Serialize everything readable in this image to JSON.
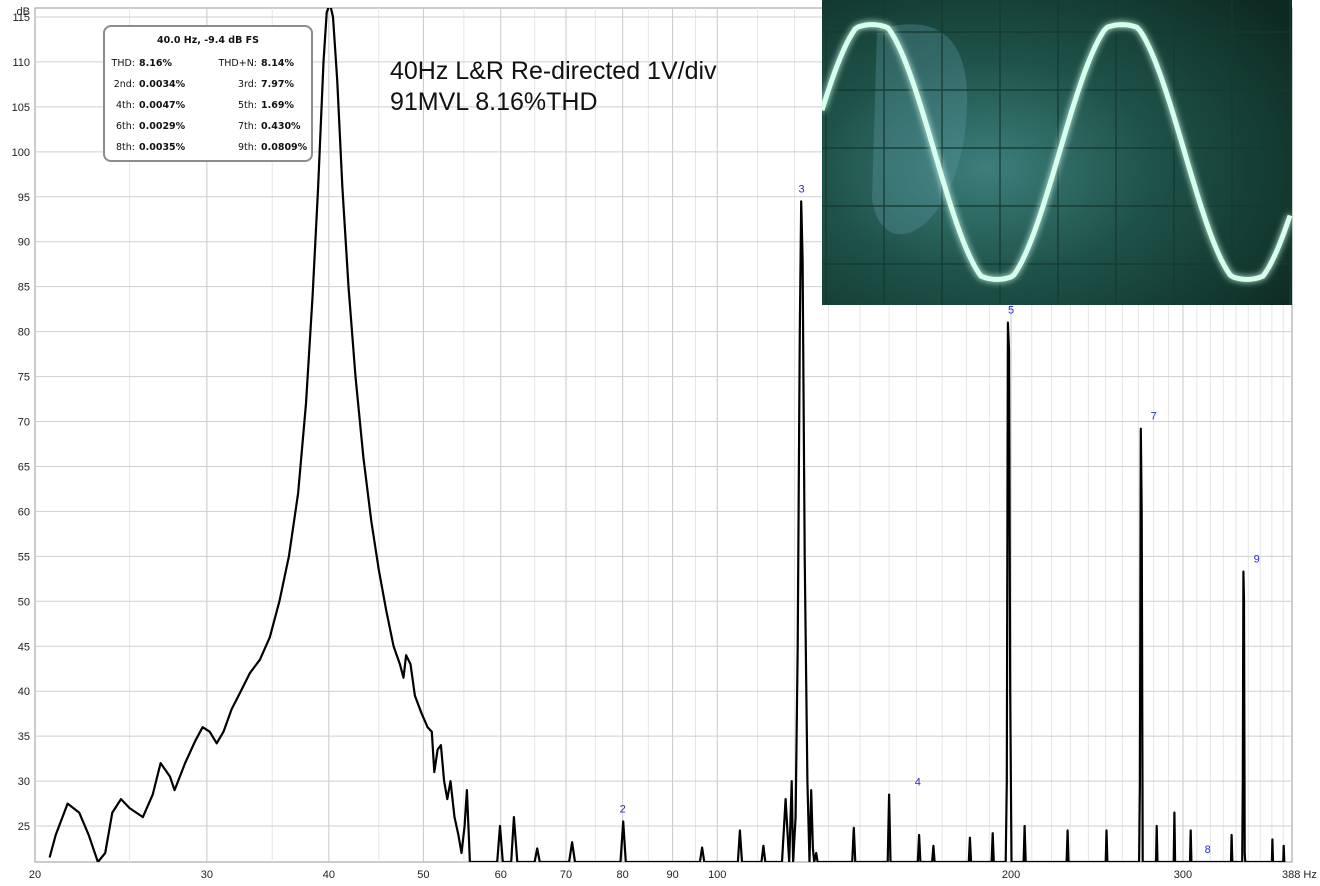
{
  "chart_data": {
    "type": "line",
    "xlabel": "Hz",
    "ylabel": "dB",
    "xscale": "log",
    "xlim": [
      20,
      388
    ],
    "ylim": [
      21,
      116
    ],
    "grid": true,
    "x_ticks": [
      20,
      30,
      40,
      50,
      60,
      70,
      80,
      90,
      100,
      200,
      300,
      388
    ],
    "x_tick_labels": [
      "20",
      "30",
      "40",
      "50",
      "60",
      "70",
      "80",
      "90",
      "100",
      "200",
      "300",
      "388 Hz"
    ],
    "y_ticks": [
      25,
      30,
      35,
      40,
      45,
      50,
      55,
      60,
      65,
      70,
      75,
      80,
      85,
      90,
      95,
      100,
      105,
      110,
      115
    ],
    "series": [
      {
        "values": [
          [
            20.7,
            21.5
          ],
          [
            21.0,
            24
          ],
          [
            21.6,
            27.5
          ],
          [
            22.2,
            26.5
          ],
          [
            22.7,
            24
          ],
          [
            23.2,
            21
          ],
          [
            23.6,
            22
          ],
          [
            24.0,
            26.5
          ],
          [
            24.5,
            28
          ],
          [
            25.0,
            27
          ],
          [
            25.8,
            26
          ],
          [
            26.4,
            28.5
          ],
          [
            26.9,
            32
          ],
          [
            27.5,
            30.5
          ],
          [
            27.8,
            29
          ],
          [
            28.5,
            32
          ],
          [
            29.2,
            34.5
          ],
          [
            29.7,
            36
          ],
          [
            30.2,
            35.5
          ],
          [
            30.7,
            34.2
          ],
          [
            31.2,
            35.5
          ],
          [
            31.8,
            38
          ],
          [
            32.5,
            40
          ],
          [
            33.2,
            42
          ],
          [
            34.0,
            43.5
          ],
          [
            34.8,
            46
          ],
          [
            35.6,
            50
          ],
          [
            36.4,
            55
          ],
          [
            37.2,
            62
          ],
          [
            37.9,
            72
          ],
          [
            38.5,
            84
          ],
          [
            39.0,
            96
          ],
          [
            39.5,
            110
          ],
          [
            39.8,
            115.5
          ],
          [
            40.1,
            116.5
          ],
          [
            40.4,
            115
          ],
          [
            40.8,
            108
          ],
          [
            41.3,
            96
          ],
          [
            41.9,
            85
          ],
          [
            42.6,
            75
          ],
          [
            43.4,
            66
          ],
          [
            44.2,
            59
          ],
          [
            45.0,
            53.5
          ],
          [
            45.8,
            49
          ],
          [
            46.6,
            45
          ],
          [
            47.3,
            43
          ],
          [
            47.7,
            41.5
          ],
          [
            48.0,
            44
          ],
          [
            48.5,
            43
          ],
          [
            49.0,
            39.5
          ],
          [
            49.8,
            37.5
          ],
          [
            50.5,
            36
          ],
          [
            51.0,
            35.5
          ],
          [
            51.3,
            31
          ],
          [
            51.7,
            33.5
          ],
          [
            52.1,
            34
          ],
          [
            52.5,
            30
          ],
          [
            52.9,
            28
          ],
          [
            53.3,
            30
          ],
          [
            53.8,
            26
          ],
          [
            54.3,
            24
          ],
          [
            54.7,
            22
          ],
          [
            55.1,
            25
          ],
          [
            55.4,
            29
          ],
          [
            55.8,
            21
          ],
          [
            59.5,
            21
          ],
          [
            59.9,
            25
          ],
          [
            60.3,
            21
          ],
          [
            61.5,
            21
          ],
          [
            61.9,
            26
          ],
          [
            62.4,
            21
          ],
          [
            65.0,
            21
          ],
          [
            65.4,
            22.5
          ],
          [
            65.8,
            21
          ],
          [
            70.5,
            21
          ],
          [
            71.0,
            23.2
          ],
          [
            71.5,
            21
          ],
          [
            79.6,
            21
          ],
          [
            80.1,
            25.5
          ],
          [
            80.6,
            21
          ],
          [
            96.0,
            21
          ],
          [
            96.5,
            22.6
          ],
          [
            97.0,
            21
          ],
          [
            105.0,
            21
          ],
          [
            105.5,
            24.5
          ],
          [
            106.0,
            21
          ],
          [
            111.0,
            21
          ],
          [
            111.5,
            22.8
          ],
          [
            112.0,
            21
          ],
          [
            116.5,
            21
          ],
          [
            117.5,
            28
          ],
          [
            118.5,
            21
          ],
          [
            118.8,
            25
          ],
          [
            119.2,
            30
          ],
          [
            119.6,
            21
          ],
          [
            120.3,
            26
          ],
          [
            120.9,
            45
          ],
          [
            121.5,
            80
          ],
          [
            121.9,
            94.5
          ],
          [
            122.3,
            88
          ],
          [
            122.9,
            55
          ],
          [
            123.7,
            30
          ],
          [
            124.3,
            21
          ],
          [
            124.8,
            29
          ],
          [
            125.3,
            22.5
          ],
          [
            125.7,
            21
          ],
          [
            126.3,
            22
          ],
          [
            126.7,
            21
          ],
          [
            137.5,
            21
          ],
          [
            138.0,
            24.8
          ],
          [
            138.5,
            21
          ],
          [
            149.5,
            21
          ],
          [
            150.0,
            28.5
          ],
          [
            150.5,
            21
          ],
          [
            160.5,
            21
          ],
          [
            161.0,
            24
          ],
          [
            161.5,
            21
          ],
          [
            166.0,
            21
          ],
          [
            166.5,
            22.8
          ],
          [
            167.0,
            21
          ],
          [
            181.0,
            21
          ],
          [
            181.5,
            23.7
          ],
          [
            182.0,
            21
          ],
          [
            191.0,
            21
          ],
          [
            191.5,
            24.2
          ],
          [
            192.0,
            21
          ],
          [
            197.5,
            21
          ],
          [
            198.0,
            30
          ],
          [
            198.5,
            81
          ],
          [
            199.0,
            78
          ],
          [
            199.6,
            40
          ],
          [
            200.2,
            21
          ],
          [
            206.0,
            21
          ],
          [
            206.5,
            25
          ],
          [
            207.0,
            21
          ],
          [
            228.0,
            21
          ],
          [
            228.5,
            24.5
          ],
          [
            229.0,
            21
          ],
          [
            250.0,
            21
          ],
          [
            250.5,
            24.5
          ],
          [
            251.0,
            21
          ],
          [
            270.5,
            21
          ],
          [
            271.0,
            29.5
          ],
          [
            271.6,
            69.2
          ],
          [
            272.2,
            60
          ],
          [
            272.8,
            21
          ],
          [
            281.5,
            21
          ],
          [
            282.0,
            25
          ],
          [
            282.5,
            21
          ],
          [
            293.5,
            21
          ],
          [
            294.0,
            26.5
          ],
          [
            294.5,
            21
          ],
          [
            305.0,
            21
          ],
          [
            305.5,
            24.5
          ],
          [
            306.0,
            21
          ],
          [
            336.0,
            21
          ],
          [
            336.5,
            24
          ],
          [
            337.0,
            21
          ],
          [
            345.0,
            21
          ],
          [
            345.5,
            30
          ],
          [
            346.0,
            53.3
          ],
          [
            346.5,
            50
          ],
          [
            347.0,
            22
          ],
          [
            347.5,
            21
          ],
          [
            370.0,
            21
          ],
          [
            370.5,
            23.5
          ],
          [
            371.0,
            21
          ],
          [
            380.0,
            21
          ],
          [
            380.5,
            22.8
          ],
          [
            381.0,
            21
          ]
        ]
      }
    ],
    "harmonic_labels": [
      {
        "label": "2",
        "x": 80,
        "y": 25.5
      },
      {
        "label": "3",
        "x": 122,
        "y": 94.5
      },
      {
        "label": "4",
        "x": 160.5,
        "y": 28.5
      },
      {
        "label": "5",
        "x": 200,
        "y": 81
      },
      {
        "label": "7",
        "x": 280,
        "y": 69.2
      },
      {
        "label": "8",
        "x": 318,
        "y": 21
      },
      {
        "label": "9",
        "x": 357,
        "y": 53.3
      }
    ],
    "distortion_panel": {
      "title": "40.0 Hz, -9.4 dB FS",
      "rows": [
        {
          "l1": "THD:",
          "v1": "8.16%",
          "l2": "THD+N:",
          "v2": "8.14%"
        },
        {
          "l1": "2nd:",
          "v1": "0.0034%",
          "l2": "3rd:",
          "v2": "7.97%"
        },
        {
          "l1": "4th:",
          "v1": "0.0047%",
          "l2": "5th:",
          "v2": "1.69%"
        },
        {
          "l1": "6th:",
          "v1": "0.0029%",
          "l2": "7th:",
          "v2": "0.430%"
        },
        {
          "l1": "8th:",
          "v1": "0.0035%",
          "l2": "9th:",
          "v2": "0.0809%"
        }
      ]
    },
    "annotation": [
      "40Hz L&R Re-directed 1V/div",
      "91MVL 8.16%THD"
    ],
    "scope_colors": {
      "trace": "#b8ffe0",
      "screen": "#113a30"
    }
  }
}
